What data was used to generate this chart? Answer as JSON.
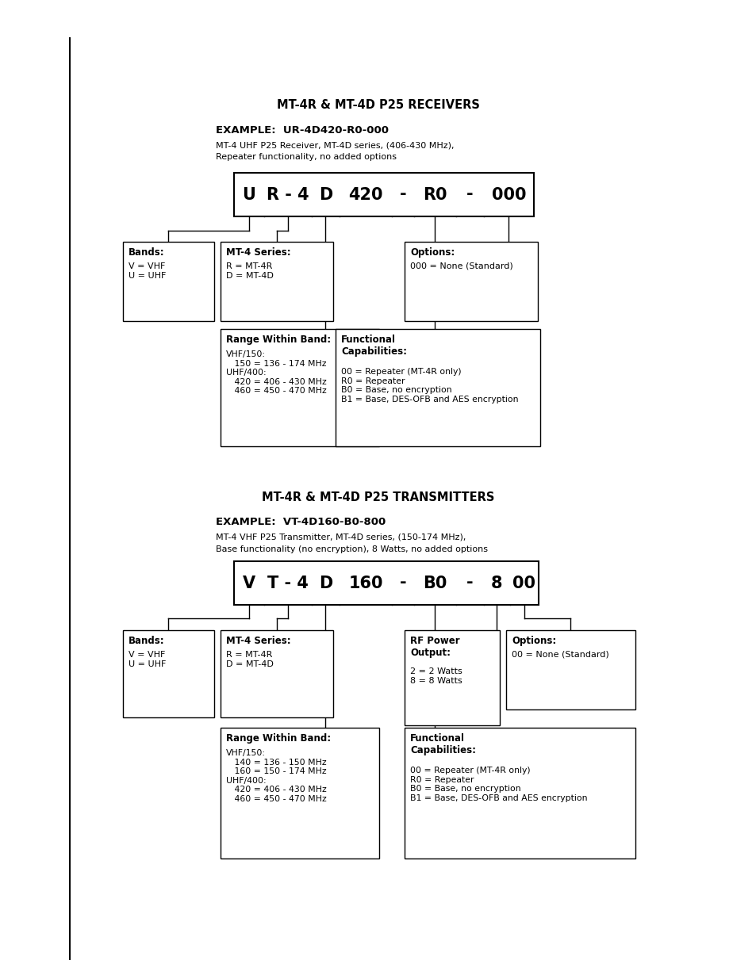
{
  "bg_color": "#ffffff",
  "page_width": 9.54,
  "page_height": 12.35,
  "section1": {
    "title": "MT-4R & MT-4D P25 RECEIVERS",
    "example_label": "EXAMPLE:  UR-4D420-R0-000",
    "example_desc1": "MT-4 UHF P25 Receiver, MT-4D series, (406-430 MHz),",
    "example_desc2": "Repeater functionality, no added options",
    "bands_title": "Bands:",
    "bands_content": "V = VHF\nU = UHF",
    "mt4_title": "MT-4 Series:",
    "mt4_content": "R = MT-4R\nD = MT-4D",
    "options_title": "Options:",
    "options_content": "000 = None (Standard)",
    "range_title": "Range Within Band:",
    "range_content": "VHF/150:\n   150 = 136 - 174 MHz\nUHF/400:\n   420 = 406 - 430 MHz\n   460 = 450 - 470 MHz",
    "func_title": "Functional\nCapabilities:",
    "func_content": "00 = Repeater (MT-4R only)\nR0 = Repeater\nB0 = Base, no encryption\nB1 = Base, DES-OFB and AES encryption"
  },
  "section2": {
    "title": "MT-4R & MT-4D P25 TRANSMITTERS",
    "example_label": "EXAMPLE:  VT-4D160-B0-800",
    "example_desc1": "MT-4 VHF P25 Transmitter, MT-4D series, (150-174 MHz),",
    "example_desc2": "Base functionality (no encryption), 8 Watts, no added options",
    "bands_title": "Bands:",
    "bands_content": "V = VHF\nU = UHF",
    "mt4_title": "MT-4 Series:",
    "mt4_content": "R = MT-4R\nD = MT-4D",
    "rf_title": "RF Power\nOutput:",
    "rf_content": "2 = 2 Watts\n8 = 8 Watts",
    "options_title": "Options:",
    "options_content": "00 = None (Standard)",
    "range_title": "Range Within Band:",
    "range_content": "VHF/150:\n   140 = 136 - 150 MHz\n   160 = 150 - 174 MHz\nUHF/400:\n   420 = 406 - 430 MHz\n   460 = 450 - 470 MHz",
    "func_title": "Functional\nCapabilities:",
    "func_content": "00 = Repeater (MT-4R only)\nR0 = Repeater\nB0 = Base, no encryption\nB1 = Base, DES-OFB and AES encryption"
  }
}
